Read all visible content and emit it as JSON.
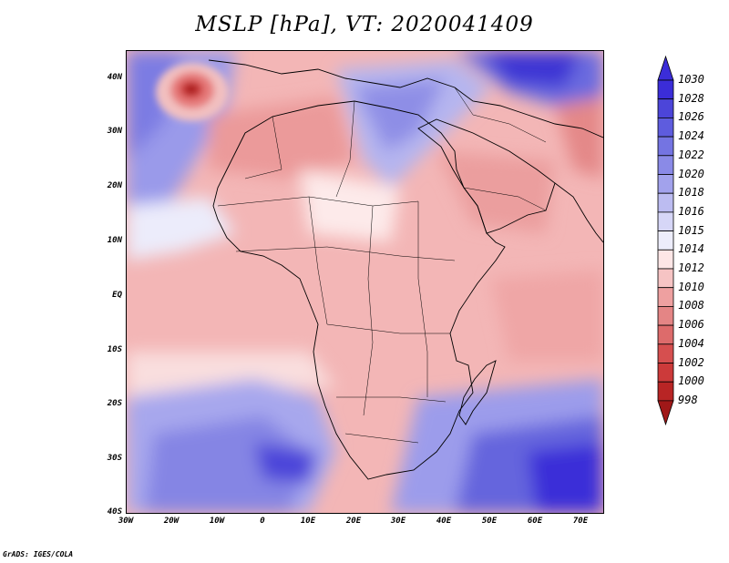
{
  "title": "MSLP [hPa], VT: 2020041409",
  "credit": "GrADS: IGES/COLA",
  "map": {
    "lon_range": [
      -30,
      75
    ],
    "lat_range": [
      -40,
      45
    ],
    "lat_labels": [
      "40N",
      "30N",
      "20N",
      "10N",
      "EQ",
      "10S",
      "20S",
      "30S",
      "40S"
    ],
    "lon_labels": [
      "30W",
      "20W",
      "10W",
      "0",
      "10E",
      "20E",
      "30E",
      "40E",
      "50E",
      "60E",
      "70E"
    ],
    "background_level": "1010 hPa",
    "features": [
      {
        "name": "azores-high-center",
        "lon": -15.5,
        "lat": 37,
        "value": "998"
      },
      {
        "name": "south-atlantic-high",
        "lon": 7,
        "lat": -31,
        "value": "1026"
      },
      {
        "name": "indian-ocean-high",
        "lon": 71,
        "lat": -36,
        "value": "1030"
      },
      {
        "name": "eurasian-high",
        "lon": 59,
        "lat": 41,
        "value": "1030"
      },
      {
        "name": "mediterranean-ridge",
        "lon": 28,
        "lat": 35,
        "value": "1018"
      },
      {
        "name": "arabian-low",
        "lon": 44,
        "lat": 20,
        "value": "1006"
      }
    ]
  },
  "colorbar": {
    "levels": [
      "1030",
      "1028",
      "1026",
      "1024",
      "1022",
      "1020",
      "1018",
      "1016",
      "1015",
      "1014",
      "1012",
      "1010",
      "1008",
      "1006",
      "1004",
      "1002",
      "1000",
      "998"
    ],
    "colors": [
      "#3b2dd8",
      "#3b2dd8",
      "#4c45d9",
      "#5e5cde",
      "#7474e2",
      "#8a8ae7",
      "#a2a2ec",
      "#bcbcf1",
      "#d6d6f7",
      "#ededfb",
      "#fde6e6",
      "#f6c4c4",
      "#eea0a0",
      "#e48585",
      "#dd6b6b",
      "#d64f4f",
      "#cc3a3a",
      "#b82525",
      "#a01818"
    ]
  }
}
